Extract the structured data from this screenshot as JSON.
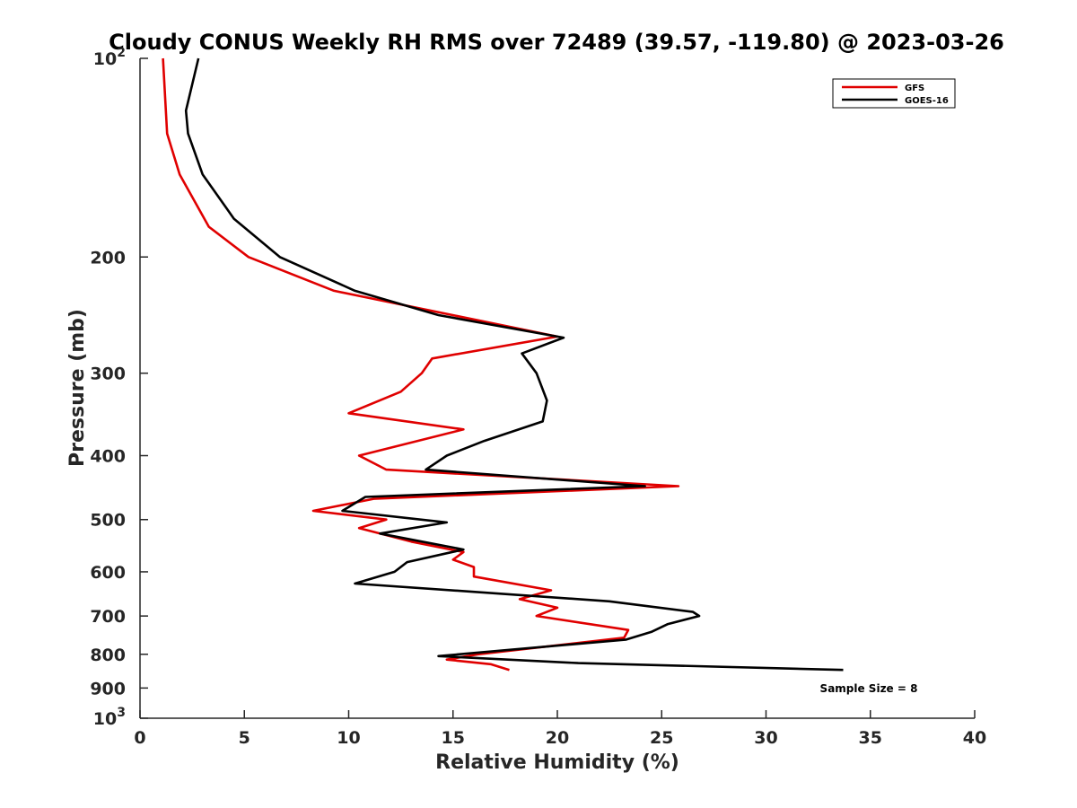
{
  "chart_data": {
    "type": "line",
    "title": "Cloudy CONUS Weekly RH RMS over 72489 (39.57, -119.80) @ 2023-03-26",
    "xlabel": "Relative Humidity (%)",
    "ylabel": "Pressure (mb)",
    "xlim": [
      0,
      40
    ],
    "ylim": [
      100,
      1000
    ],
    "y_scale": "log",
    "y_reversed": true,
    "x_ticks": [
      "0",
      "5",
      "10",
      "15",
      "20",
      "25",
      "30",
      "35",
      "40"
    ],
    "y_ticks": [
      {
        "value": 100,
        "base": "10",
        "exp": "2"
      },
      {
        "value": 200,
        "label": "200"
      },
      {
        "value": 300,
        "label": "300"
      },
      {
        "value": 400,
        "label": "400"
      },
      {
        "value": 500,
        "label": "500"
      },
      {
        "value": 600,
        "label": "600"
      },
      {
        "value": 700,
        "label": "700"
      },
      {
        "value": 800,
        "label": "800"
      },
      {
        "value": 900,
        "label": "900"
      },
      {
        "value": 1000,
        "base": "10",
        "exp": "3"
      }
    ],
    "legend_position": "top-right",
    "annotation": "Sample Size = 8",
    "series": [
      {
        "name": "GFS",
        "color": "#e00000",
        "points": [
          [
            1.1,
            100
          ],
          [
            1.3,
            130
          ],
          [
            1.9,
            150
          ],
          [
            3.3,
            180
          ],
          [
            5.2,
            200
          ],
          [
            9.3,
            225
          ],
          [
            20.0,
            264
          ],
          [
            14.0,
            285
          ],
          [
            13.5,
            300
          ],
          [
            12.5,
            320
          ],
          [
            10.0,
            345
          ],
          [
            15.5,
            365
          ],
          [
            10.5,
            400
          ],
          [
            11.8,
            420
          ],
          [
            25.8,
            445
          ],
          [
            11.2,
            465
          ],
          [
            8.3,
            485
          ],
          [
            11.8,
            500
          ],
          [
            10.5,
            515
          ],
          [
            13.0,
            540
          ],
          [
            15.5,
            560
          ],
          [
            15.0,
            575
          ],
          [
            16.0,
            590
          ],
          [
            16.0,
            610
          ],
          [
            19.7,
            640
          ],
          [
            18.2,
            660
          ],
          [
            20.0,
            680
          ],
          [
            19.0,
            700
          ],
          [
            23.4,
            735
          ],
          [
            23.2,
            755
          ],
          [
            16.2,
            800
          ],
          [
            14.7,
            815
          ],
          [
            16.8,
            828
          ],
          [
            17.7,
            845
          ]
        ]
      },
      {
        "name": "GOES-16",
        "color": "#000000",
        "points": [
          [
            2.8,
            100
          ],
          [
            2.2,
            120
          ],
          [
            2.3,
            130
          ],
          [
            3.0,
            150
          ],
          [
            4.5,
            175
          ],
          [
            6.7,
            200
          ],
          [
            10.3,
            225
          ],
          [
            14.3,
            245
          ],
          [
            20.3,
            265
          ],
          [
            18.3,
            280
          ],
          [
            19.0,
            300
          ],
          [
            19.5,
            330
          ],
          [
            19.3,
            355
          ],
          [
            16.5,
            380
          ],
          [
            14.7,
            400
          ],
          [
            13.7,
            420
          ],
          [
            24.2,
            445
          ],
          [
            10.8,
            462
          ],
          [
            9.7,
            485
          ],
          [
            14.7,
            505
          ],
          [
            11.5,
            525
          ],
          [
            15.5,
            555
          ],
          [
            12.8,
            580
          ],
          [
            12.2,
            600
          ],
          [
            10.3,
            625
          ],
          [
            22.5,
            665
          ],
          [
            26.5,
            690
          ],
          [
            26.8,
            700
          ],
          [
            25.3,
            720
          ],
          [
            24.5,
            740
          ],
          [
            23.3,
            760
          ],
          [
            14.3,
            805
          ],
          [
            21.0,
            825
          ],
          [
            33.7,
            845
          ]
        ]
      }
    ]
  }
}
